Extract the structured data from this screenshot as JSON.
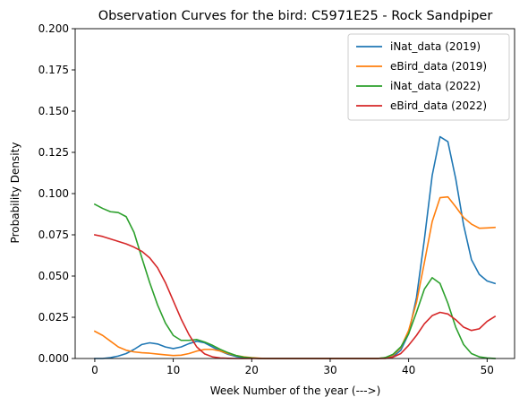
{
  "chart_data": {
    "type": "line",
    "title": "Observation Curves for the bird: C5971E25 - Rock Sandpiper",
    "xlabel": "Week Number of the year (--->)",
    "ylabel": "Probability Density",
    "xlim": [
      -2.5,
      53.5
    ],
    "ylim": [
      0,
      0.2
    ],
    "x_ticks": [
      0,
      10,
      20,
      30,
      40,
      50
    ],
    "y_ticks": [
      0.0,
      0.025,
      0.05,
      0.075,
      0.1,
      0.125,
      0.15,
      0.175,
      0.2
    ],
    "x_tick_labels": [
      "0",
      "10",
      "20",
      "30",
      "40",
      "50"
    ],
    "y_tick_labels": [
      "0.000",
      "0.025",
      "0.050",
      "0.075",
      "0.100",
      "0.125",
      "0.150",
      "0.175",
      "0.200"
    ],
    "legend_position": "upper right",
    "grid": false,
    "x": [
      0,
      1,
      2,
      3,
      4,
      5,
      6,
      7,
      8,
      9,
      10,
      11,
      12,
      13,
      14,
      15,
      16,
      17,
      18,
      19,
      20,
      21,
      22,
      23,
      24,
      25,
      26,
      27,
      28,
      29,
      30,
      31,
      32,
      33,
      34,
      35,
      36,
      37,
      38,
      39,
      40,
      41,
      42,
      43,
      44,
      45,
      46,
      47,
      48,
      49,
      50,
      51
    ],
    "series": [
      {
        "name": "iNat_data (2019)",
        "color": "#1f77b4",
        "values": [
          0.0,
          0.0,
          0.0005,
          0.0015,
          0.003,
          0.0055,
          0.0085,
          0.0095,
          0.0088,
          0.007,
          0.006,
          0.007,
          0.009,
          0.0105,
          0.0095,
          0.007,
          0.0045,
          0.0025,
          0.0012,
          0.0005,
          0.0002,
          0.0,
          0.0,
          0.0,
          0.0,
          0.0,
          0.0,
          0.0,
          0.0,
          0.0,
          0.0,
          0.0,
          0.0,
          0.0,
          0.0,
          0.0,
          0.0,
          0.0002,
          0.001,
          0.005,
          0.015,
          0.037,
          0.072,
          0.111,
          0.1345,
          0.1315,
          0.109,
          0.081,
          0.06,
          0.051,
          0.047,
          0.0455
        ]
      },
      {
        "name": "eBird_data (2019)",
        "color": "#ff7f0e",
        "values": [
          0.0165,
          0.014,
          0.0105,
          0.007,
          0.005,
          0.004,
          0.0035,
          0.0032,
          0.0027,
          0.0022,
          0.0018,
          0.002,
          0.003,
          0.0045,
          0.0055,
          0.0055,
          0.0045,
          0.003,
          0.0018,
          0.001,
          0.0005,
          0.0002,
          0.0,
          0.0,
          0.0,
          0.0,
          0.0,
          0.0,
          0.0,
          0.0,
          0.0,
          0.0,
          0.0,
          0.0,
          0.0,
          0.0,
          0.0,
          0.0005,
          0.002,
          0.0065,
          0.017,
          0.034,
          0.058,
          0.083,
          0.0975,
          0.098,
          0.092,
          0.0855,
          0.0815,
          0.079,
          0.0792,
          0.0795
        ]
      },
      {
        "name": "iNat_data (2022)",
        "color": "#2ca02c",
        "values": [
          0.0935,
          0.091,
          0.089,
          0.0885,
          0.086,
          0.0765,
          0.061,
          0.046,
          0.0325,
          0.0215,
          0.014,
          0.011,
          0.011,
          0.0115,
          0.01,
          0.008,
          0.0055,
          0.0035,
          0.0018,
          0.0008,
          0.0003,
          0.0,
          0.0,
          0.0,
          0.0,
          0.0,
          0.0,
          0.0,
          0.0,
          0.0,
          0.0,
          0.0,
          0.0,
          0.0,
          0.0,
          0.0,
          0.0,
          0.0005,
          0.0025,
          0.007,
          0.015,
          0.028,
          0.042,
          0.049,
          0.0455,
          0.0335,
          0.019,
          0.0085,
          0.003,
          0.001,
          0.0003,
          0.0
        ]
      },
      {
        "name": "eBird_data (2022)",
        "color": "#d62728",
        "values": [
          0.075,
          0.074,
          0.0725,
          0.071,
          0.0695,
          0.0675,
          0.065,
          0.061,
          0.055,
          0.046,
          0.035,
          0.024,
          0.0145,
          0.007,
          0.0028,
          0.001,
          0.0003,
          0.0001,
          0.0,
          0.0,
          0.0,
          0.0,
          0.0,
          0.0,
          0.0,
          0.0,
          0.0,
          0.0,
          0.0,
          0.0,
          0.0,
          0.0,
          0.0,
          0.0,
          0.0,
          0.0,
          0.0,
          0.0,
          0.0008,
          0.003,
          0.008,
          0.014,
          0.021,
          0.026,
          0.028,
          0.027,
          0.0235,
          0.019,
          0.017,
          0.018,
          0.0225,
          0.0255
        ]
      }
    ]
  }
}
